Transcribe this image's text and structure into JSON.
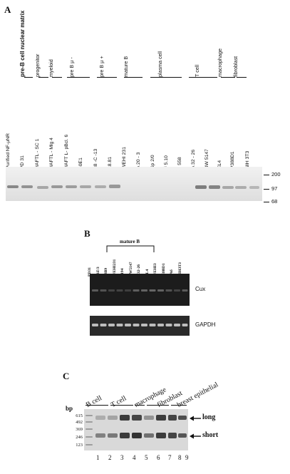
{
  "panel_a": {
    "letter": "A",
    "categories": [
      {
        "label": "pre-B cell nuclear matrix",
        "bold": true
      },
      {
        "label": "progenitor"
      },
      {
        "label": "myeloid"
      },
      {
        "label": "pre B μ -"
      },
      {
        "label": "pre B μ +"
      },
      {
        "label": "mature B"
      },
      {
        "label": "plasma cell"
      },
      {
        "label": "T cell"
      },
      {
        "label": "macrophage"
      },
      {
        "label": "fibroblast"
      }
    ],
    "lanes": [
      "Purified NF-μNR",
      "PD 31",
      "HAFTL - SC 1",
      "HAFTL - Mlg 4",
      "HAFT L- pBcl. 6",
      "40E1",
      "38 -C -13",
      "18.81",
      "WEHI 231",
      "A 20 - 3",
      "Sp 2/0",
      "# 5.10",
      "J 558",
      "A 32 - 26",
      "BW 5147",
      "EL4",
      "P388D1",
      "NIH 3T3"
    ],
    "markers": [
      "200",
      "97",
      "68"
    ]
  },
  "panel_b": {
    "letter": "B",
    "bracket_label": "mature B",
    "lanes": [
      "PD31",
      "70Z/3",
      "38B9",
      "WEHI231",
      "S194",
      "BW5147",
      "A32-26",
      "EL4",
      "WEHI3",
      "P388D1",
      "PA6",
      "NIH3T3"
    ],
    "gel_labels": [
      "Cux",
      "GAPDH"
    ]
  },
  "panel_c": {
    "letter": "C",
    "bp_label": "bp",
    "bp_markers": [
      "615",
      "492",
      "369",
      "246",
      "123"
    ],
    "categories": [
      "B cell",
      "T cell",
      "macrophage",
      "fibroblast",
      "breast epithelial"
    ],
    "lanes": [
      "1",
      "2",
      "3",
      "4",
      "5",
      "6",
      "7",
      "8",
      "9"
    ],
    "band_labels": [
      "long",
      "short"
    ]
  },
  "colors": {
    "ink": "#111111",
    "gel_light": "#e6e6e6",
    "gel_dark": "#1c1c1c"
  }
}
